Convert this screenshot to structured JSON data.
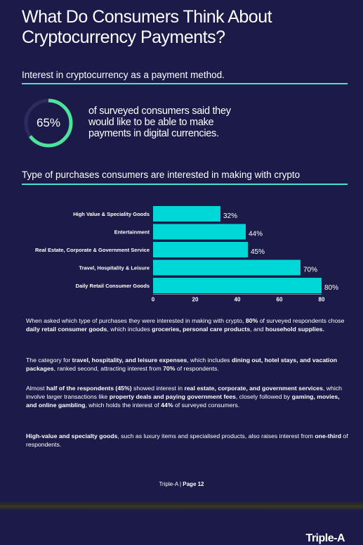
{
  "title": "What Do Consumers Think About Cryptocurrency Payments?",
  "interest_heading": "Interest in cryptocurrency as a payment method.",
  "stat": {
    "percent_label": "65%",
    "percent_value": 65,
    "description": "of surveyed consumers said they would like to be able to make payments  in digital currencies."
  },
  "purchases_heading": "Type of purchases consumers are interested in making with crypto",
  "chart_data": {
    "type": "bar",
    "orientation": "horizontal",
    "categories": [
      "High Value & Speciality Goods",
      "Entertainment",
      "Real Estate, Corporate & Government Service",
      "Travel, Hospitality & Leisure",
      "Daily Retail Consumer Goods"
    ],
    "values": [
      32,
      44,
      45,
      70,
      80
    ],
    "value_labels": [
      "32%",
      "44%",
      "45%",
      "70%",
      "80%"
    ],
    "xticks": [
      "0",
      "20",
      "40",
      "60",
      "80"
    ],
    "xlim": [
      0,
      80
    ],
    "bar_color": "#00d8d8",
    "grid": false
  },
  "paragraphs": [
    [
      {
        "t": "When asked which type of purchases they were interested in making with crypto, "
      },
      {
        "t": "80%",
        "b": true
      },
      {
        "t": " of surveyed respondents chose "
      },
      {
        "t": "daily retail consumer goods",
        "b": true
      },
      {
        "t": ", which includes "
      },
      {
        "t": "groceries, personal care products",
        "b": true
      },
      {
        "t": ", and "
      },
      {
        "t": "household supplies.",
        "b": true
      }
    ],
    [
      {
        "t": "The category for "
      },
      {
        "t": "travel, hospitality, and leisure expenses",
        "b": true
      },
      {
        "t": ", which includes "
      },
      {
        "t": "dining out, hotel stays, and vacation packages",
        "b": true
      },
      {
        "t": ", ranked second, attracting interest from "
      },
      {
        "t": "70%",
        "b": true
      },
      {
        "t": " of respondents."
      }
    ],
    [
      {
        "t": "Almost "
      },
      {
        "t": "half of the respondents (45%)",
        "b": true
      },
      {
        "t": " showed interest in "
      },
      {
        "t": "real estate, corporate, and government services",
        "b": true
      },
      {
        "t": ", which involve larger transactions like "
      },
      {
        "t": "property deals and paying government fees",
        "b": true
      },
      {
        "t": ", closely followed by "
      },
      {
        "t": "gaming, movies, and online gambling",
        "b": true
      },
      {
        "t": ", which holds the interest of "
      },
      {
        "t": "44%",
        "b": true
      },
      {
        "t": " of surveyed consumers."
      }
    ],
    [
      {
        "t": "High-value and specialty goods",
        "b": true
      },
      {
        "t": ", such as luxury items and specialised products, also raises interest from "
      },
      {
        "t": "one-third",
        "b": true
      },
      {
        "t": " of respondents."
      }
    ]
  ],
  "footer": {
    "brand": "Triple-A | ",
    "page": "Page 12"
  },
  "logo_text": "Triple-A",
  "colors": {
    "background": "#1c1a48",
    "accent": "#48e2cf",
    "bar": "#00d8d8",
    "ring": "#4de39b"
  }
}
